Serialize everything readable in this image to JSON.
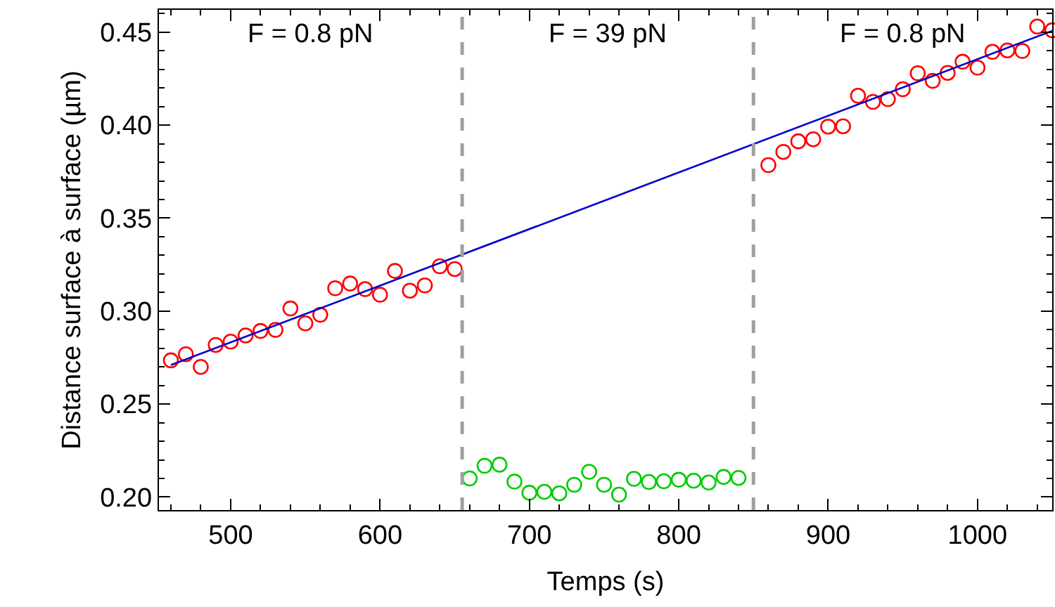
{
  "chart_data": {
    "type": "scatter",
    "xlabel": "Temps (s)",
    "ylabel": "Distance surface à surface (µm)",
    "xlim": [
      452,
      1050
    ],
    "ylim": [
      0.193,
      0.462
    ],
    "xticks": [
      500,
      600,
      700,
      800,
      900,
      1000
    ],
    "yticks": [
      {
        "value": 0.2,
        "label": "0.20"
      },
      {
        "value": 0.25,
        "label": "0.25"
      },
      {
        "value": 0.3,
        "label": "0.30"
      },
      {
        "value": 0.35,
        "label": "0.35"
      },
      {
        "value": 0.4,
        "label": "0.40"
      },
      {
        "value": 0.45,
        "label": "0.45"
      }
    ],
    "grid": false,
    "legend": false,
    "series": [
      {
        "marker": "circle",
        "color": "#ff0000",
        "x": [
          460,
          470,
          480,
          490,
          500,
          510,
          520,
          530,
          540,
          550,
          560,
          570,
          580,
          590,
          600,
          610,
          620,
          630,
          640,
          650,
          860,
          870,
          880,
          890,
          900,
          910,
          920,
          930,
          940,
          950,
          960,
          970,
          980,
          990,
          1000,
          1010,
          1020,
          1030,
          1040,
          1050
        ],
        "values": [
          0.2735,
          0.2768,
          0.27,
          0.2818,
          0.2836,
          0.2869,
          0.2893,
          0.2899,
          0.3014,
          0.2934,
          0.298,
          0.3123,
          0.3148,
          0.3118,
          0.3088,
          0.3216,
          0.311,
          0.3138,
          0.3241,
          0.3226,
          0.3785,
          0.3856,
          0.3913,
          0.3924,
          0.3992,
          0.3994,
          0.4158,
          0.4125,
          0.414,
          0.4193,
          0.4279,
          0.4238,
          0.4281,
          0.4341,
          0.4309,
          0.4394,
          0.4402,
          0.4399,
          0.453,
          0.451
        ]
      },
      {
        "marker": "circle",
        "color": "#00cc00",
        "x": [
          660,
          670,
          680,
          690,
          700,
          710,
          720,
          730,
          740,
          750,
          760,
          770,
          780,
          790,
          800,
          810,
          820,
          830,
          840
        ],
        "values": [
          0.21,
          0.2168,
          0.2174,
          0.2083,
          0.2023,
          0.2028,
          0.202,
          0.2066,
          0.2136,
          0.2066,
          0.2013,
          0.2098,
          0.2081,
          0.2085,
          0.2093,
          0.2088,
          0.2078,
          0.2108,
          0.2103
        ]
      },
      {
        "type": "line",
        "color": "#0000cc",
        "line_style": "solid",
        "x": [
          460,
          1050
        ],
        "values": [
          0.271,
          0.4507
        ]
      }
    ],
    "ref_lines": [
      {
        "axis": "x",
        "value": 655,
        "color": "#a0a0a0",
        "line_style": "dashed"
      },
      {
        "axis": "x",
        "value": 850,
        "color": "#a0a0a0",
        "line_style": "dashed"
      }
    ],
    "annotations": [
      "F = 0.8 pN",
      "F = 39 pN",
      "F = 0.8 pN"
    ]
  }
}
